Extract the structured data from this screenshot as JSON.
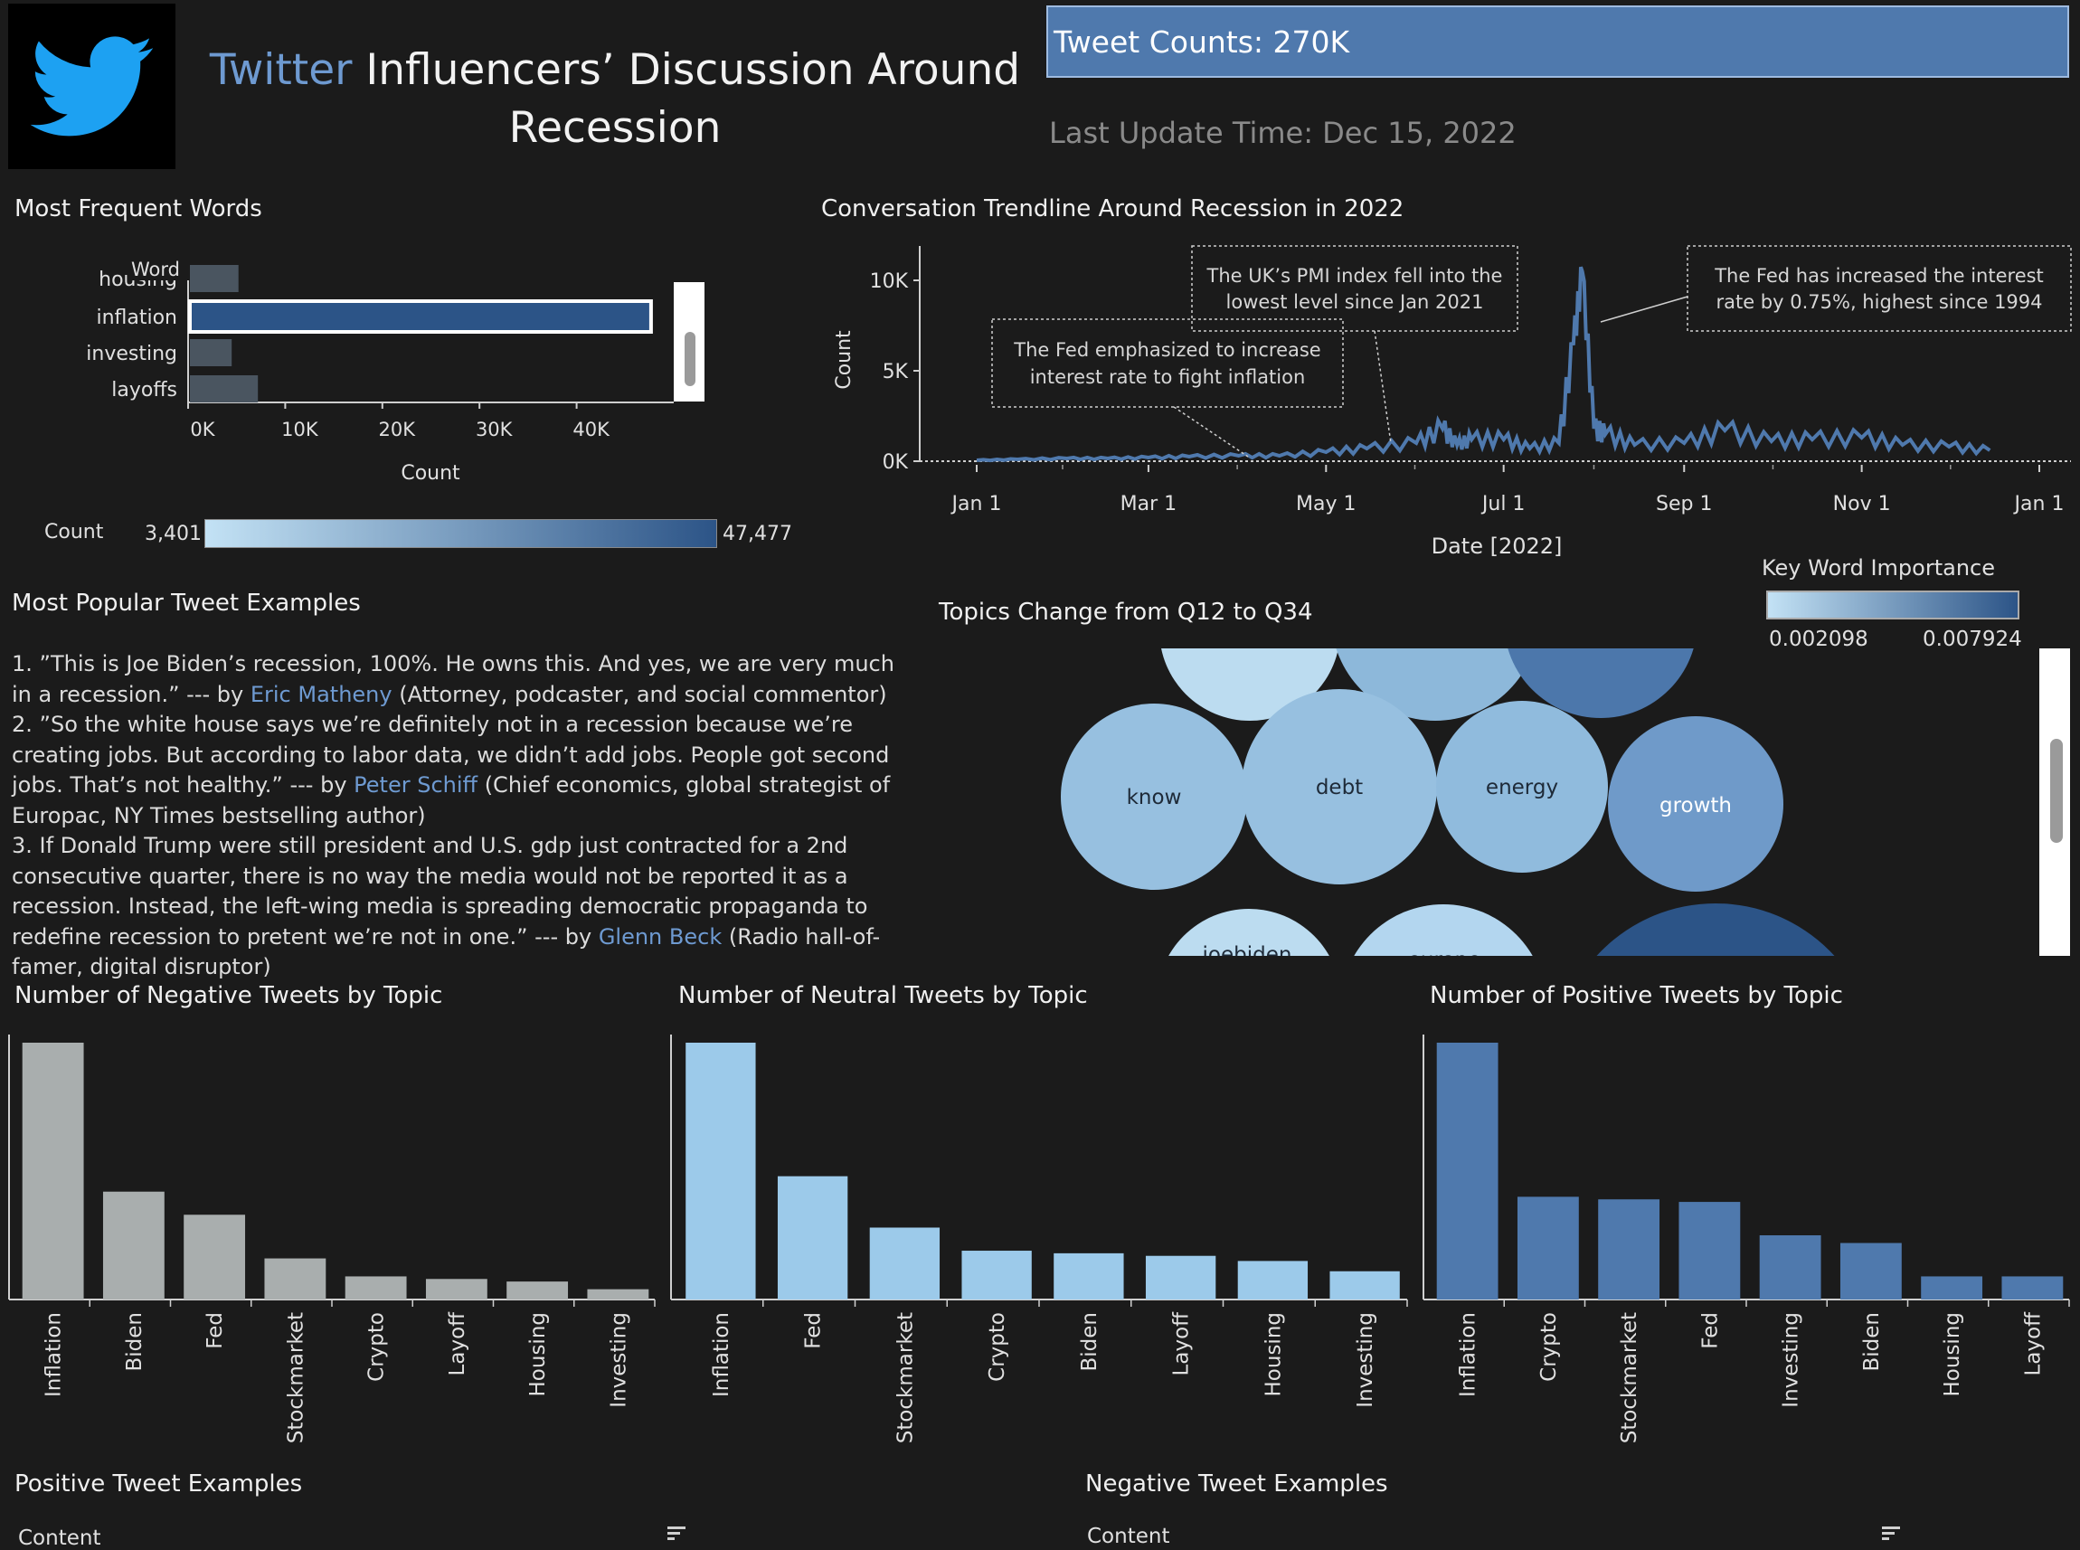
{
  "header": {
    "title_brand": "Twitter",
    "title_rest": " Influencers’ Discussion Around Recession",
    "tweet_counts": "Tweet Counts: 270K",
    "last_update": "Last Update Time: Dec 15, 2022"
  },
  "icons": {
    "logo": "twitter-bird-icon",
    "sort": "sort-icon"
  },
  "colors": {
    "accent": "#6e9ad1",
    "negative": "#a9aeae",
    "neutral": "#9ccaea",
    "positive": "#4f79ad",
    "dark_blue": "#2c5487",
    "light_blue": "#bcdcf0"
  },
  "words_panel": {
    "title": "Most Frequent Words",
    "column_header": "Word",
    "x_title": "Count",
    "legend_label": "Count",
    "legend_min": "3,401",
    "legend_max": "47,477"
  },
  "trend_panel": {
    "title": "Conversation Trendline Around Recession in 2022",
    "y_title": "Count",
    "x_title": "Date [2022]",
    "annotations": [
      {
        "line1": "The UK’s PMI index fell into the",
        "line2": "lowest level since Jan 2021"
      },
      {
        "line1": "The Fed has increased the interest",
        "line2": "rate by 0.75%, highest since 1994"
      },
      {
        "line1": "The Fed emphasized to increase",
        "line2": "interest rate to fight inflation"
      }
    ]
  },
  "tweets_panel": {
    "title": "Most Popular Tweet Examples",
    "t1": "1. ”This is Joe Biden’s recession, 100%.  He owns this. And yes,  we are very much in a recession.”  --- by ",
    "t1_author": "Eric Matheny",
    "t1_desc": "  (Attorney, podcaster,  and social commentor)",
    "t2": "2.  ”So the white house says we’re definitely not in a recession because we’re creating jobs. But according to labor data, we didn’t add jobs. People got second jobs. That’s not healthy.” --- by ",
    "t2_author": "Peter Schiff",
    "t2_desc": " (Chief economics, global strategist of Europac, NY Times bestselling author)",
    "t3": "3. If Donald Trump were still president and U.S. gdp just contracted for a 2nd consecutive quarter, there is no way the media would not be reported it as a recession. Instead, the left-wing media is spreading democratic propaganda to redefine recession to pretent we’re not in one.” --- by ",
    "t3_author": "Glenn Beck",
    "t3_desc": " (Radio hall-of-famer, digital disruptor)"
  },
  "topics_panel": {
    "title": "Topics Change from Q12 to Q34",
    "legend_title": "Key Word Importance",
    "legend_min": "0.002098",
    "legend_max": "0.007924"
  },
  "bottom": {
    "positive_examples_title": "Positive Tweet Examples",
    "negative_examples_title": "Negative Tweet Examples",
    "content_header_left": "Content",
    "content_header_right": "Content"
  },
  "chart_data": [
    {
      "type": "bar",
      "orientation": "horizontal",
      "title": "Most Frequent Words",
      "xlabel": "Count",
      "ylabel": "Word",
      "categories": [
        "housing",
        "inflation",
        "investing",
        "layoffs"
      ],
      "values": [
        5000,
        47477,
        4300,
        7000
      ],
      "xlim": [
        0,
        50000
      ],
      "xticks": [
        "0K",
        "10K",
        "20K",
        "30K",
        "40K"
      ],
      "selected": "inflation"
    },
    {
      "type": "line",
      "title": "Conversation Trendline Around Recession in 2022",
      "xlabel": "Date [2022]",
      "ylabel": "Count",
      "ylim": [
        0,
        11000
      ],
      "yticks": [
        "0K",
        "5K",
        "10K"
      ],
      "xticks": [
        "Jan 1",
        "Mar 1",
        "May 1",
        "Jul 1",
        "Sep 1",
        "Nov 1",
        "Jan 1"
      ],
      "x": [
        "2022-01-01",
        "2022-01-15",
        "2022-02-01",
        "2022-02-15",
        "2022-03-01",
        "2022-03-15",
        "2022-04-01",
        "2022-04-15",
        "2022-05-01",
        "2022-05-15",
        "2022-06-01",
        "2022-06-10",
        "2022-06-15",
        "2022-06-20",
        "2022-07-01",
        "2022-07-10",
        "2022-07-20",
        "2022-07-25",
        "2022-07-28",
        "2022-08-01",
        "2022-08-05",
        "2022-08-15",
        "2022-09-01",
        "2022-09-15",
        "2022-10-01",
        "2022-10-15",
        "2022-11-01",
        "2022-11-15",
        "2022-12-01",
        "2022-12-15"
      ],
      "values": [
        50,
        100,
        150,
        150,
        200,
        250,
        300,
        300,
        500,
        700,
        1000,
        1800,
        900,
        1200,
        1200,
        700,
        1000,
        6500,
        10500,
        1800,
        1500,
        900,
        1000,
        1700,
        1100,
        1200,
        1300,
        900,
        800,
        600
      ],
      "grid": false
    },
    {
      "type": "bubble",
      "title": "Topics Change from Q12 to Q34",
      "legend_title": "Key Word Importance",
      "color_range": [
        0.002098,
        0.007924
      ],
      "bubbles": [
        {
          "label": "know",
          "value": 0.0035
        },
        {
          "label": "debt",
          "value": 0.0037
        },
        {
          "label": "energy",
          "value": 0.004
        },
        {
          "label": "growth",
          "value": 0.0055
        },
        {
          "label": "joebiden",
          "value": 0.0023
        },
        {
          "label": "europe",
          "value": 0.0024
        }
      ]
    },
    {
      "type": "bar",
      "title": "Number of Negative Tweets by Topic",
      "categories": [
        "Inflation",
        "Biden",
        "Fed",
        "Stockmarket",
        "Crypto",
        "Layoff",
        "Housing",
        "Investing"
      ],
      "values": [
        100,
        42,
        33,
        16,
        9,
        8,
        7,
        4
      ]
    },
    {
      "type": "bar",
      "title": "Number of Neutral Tweets by Topic",
      "categories": [
        "Inflation",
        "Fed",
        "Stockmarket",
        "Crypto",
        "Biden",
        "Layoff",
        "Housing",
        "Investing"
      ],
      "values": [
        100,
        48,
        28,
        19,
        18,
        17,
        15,
        11
      ]
    },
    {
      "type": "bar",
      "title": "Number of Positive Tweets by Topic",
      "categories": [
        "Inflation",
        "Crypto",
        "Stockmarket",
        "Fed",
        "Investing",
        "Biden",
        "Housing",
        "Layoff"
      ],
      "values": [
        100,
        40,
        39,
        38,
        25,
        22,
        9,
        9
      ]
    }
  ]
}
